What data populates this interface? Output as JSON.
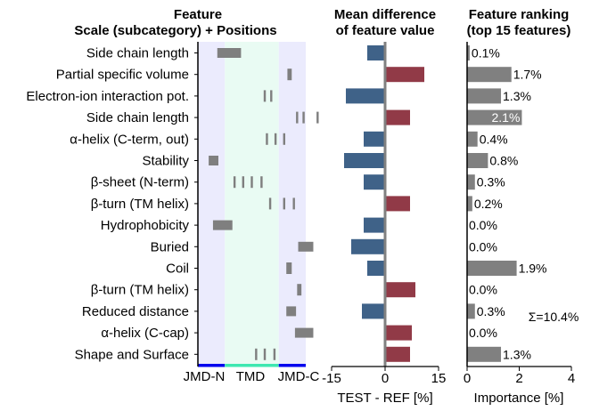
{
  "chart_data": [
    {
      "type": "heatmap",
      "title_line1": "Feature",
      "title_line2": "Scale (subcategory)  +  Positions",
      "rows": [
        "Side chain length",
        "Partial specific volume",
        "Electron-ion interaction pot.",
        "Side chain length",
        "α-helix (C-term, out)",
        "Stability",
        "β-sheet (N-term)",
        "β-turn (TM helix)",
        "Hydrophobicity",
        "Buried",
        "Coil",
        "β-turn (TM helix)",
        "Reduced distance",
        "α-helix (C-cap)",
        "Shape and Surface"
      ],
      "x_regions": [
        "JMD-N",
        "TMD",
        "JMD-C"
      ],
      "region_colors": {
        "jmd": "#ebebfd",
        "tmd": "#e9fbf3",
        "jmd_bar": "#0000ee",
        "tmd_bar": "#3ee8b0"
      },
      "position_marks": [
        {
          "row": 0,
          "positions": [
            [
              0.18,
              0.4
            ]
          ]
        },
        {
          "row": 1,
          "positions": [
            [
              0.83,
              0.87
            ]
          ]
        },
        {
          "row": 2,
          "positions": [
            [
              0.61,
              0.63
            ],
            [
              0.67,
              0.69
            ]
          ]
        },
        {
          "row": 3,
          "positions": [
            [
              0.91,
              0.93
            ],
            [
              0.97,
              0.99
            ],
            [
              1.1,
              1.12
            ]
          ]
        },
        {
          "row": 4,
          "positions": [
            [
              0.63,
              0.65
            ],
            [
              0.71,
              0.73
            ],
            [
              0.79,
              0.81
            ]
          ]
        },
        {
          "row": 5,
          "positions": [
            [
              0.1,
              0.19
            ]
          ]
        },
        {
          "row": 6,
          "positions": [
            [
              0.33,
              0.35
            ],
            [
              0.41,
              0.43
            ],
            [
              0.49,
              0.51
            ],
            [
              0.58,
              0.6
            ]
          ]
        },
        {
          "row": 7,
          "positions": [
            [
              0.66,
              0.68
            ],
            [
              0.79,
              0.81
            ],
            [
              0.88,
              0.9
            ]
          ]
        },
        {
          "row": 8,
          "positions": [
            [
              0.14,
              0.32
            ]
          ]
        },
        {
          "row": 9,
          "positions": [
            [
              0.93,
              1.07
            ]
          ]
        },
        {
          "row": 10,
          "positions": [
            [
              0.82,
              0.87
            ]
          ]
        },
        {
          "row": 11,
          "positions": [
            [
              0.92,
              0.96
            ]
          ]
        },
        {
          "row": 12,
          "positions": [
            [
              0.82,
              0.91
            ]
          ]
        },
        {
          "row": 13,
          "positions": [
            [
              0.9,
              1.07
            ]
          ]
        },
        {
          "row": 14,
          "positions": [
            [
              0.53,
              0.55
            ],
            [
              0.61,
              0.63
            ],
            [
              0.7,
              0.72
            ]
          ]
        }
      ]
    },
    {
      "type": "bar",
      "orientation": "horizontal",
      "title_line1": "Mean difference",
      "title_line2": "of feature value",
      "xlabel": "TEST - REF [%]",
      "xlim": [
        -15,
        15
      ],
      "xticks": [
        "-15",
        "0",
        "15"
      ],
      "values": [
        -5,
        11,
        -11,
        7,
        -6,
        -11.5,
        -6,
        7,
        -6,
        -9.5,
        -5,
        8.5,
        -6.5,
        7.5,
        7
      ],
      "positive_color": "#913a47",
      "negative_color": "#3f6288"
    },
    {
      "type": "bar",
      "orientation": "horizontal",
      "title_line1": "Feature ranking",
      "title_line2": "(top 15 features)",
      "xlabel": "Importance [%]",
      "xlim": [
        0,
        4
      ],
      "xticks": [
        "0",
        "2",
        "4"
      ],
      "values": [
        0.1,
        1.7,
        1.3,
        2.1,
        0.4,
        0.8,
        0.3,
        0.2,
        0.0,
        0.0,
        1.9,
        0.0,
        0.3,
        0.0,
        1.3
      ],
      "labels": [
        "0.1%",
        "1.7%",
        "1.3%",
        "2.1%",
        "0.4%",
        "0.8%",
        "0.3%",
        "0.2%",
        "0.0%",
        "0.0%",
        "1.9%",
        "0.0%",
        "0.3%",
        "0.0%",
        "1.3%"
      ],
      "sum_label": "Σ=10.4%",
      "bar_color": "#808080"
    }
  ]
}
